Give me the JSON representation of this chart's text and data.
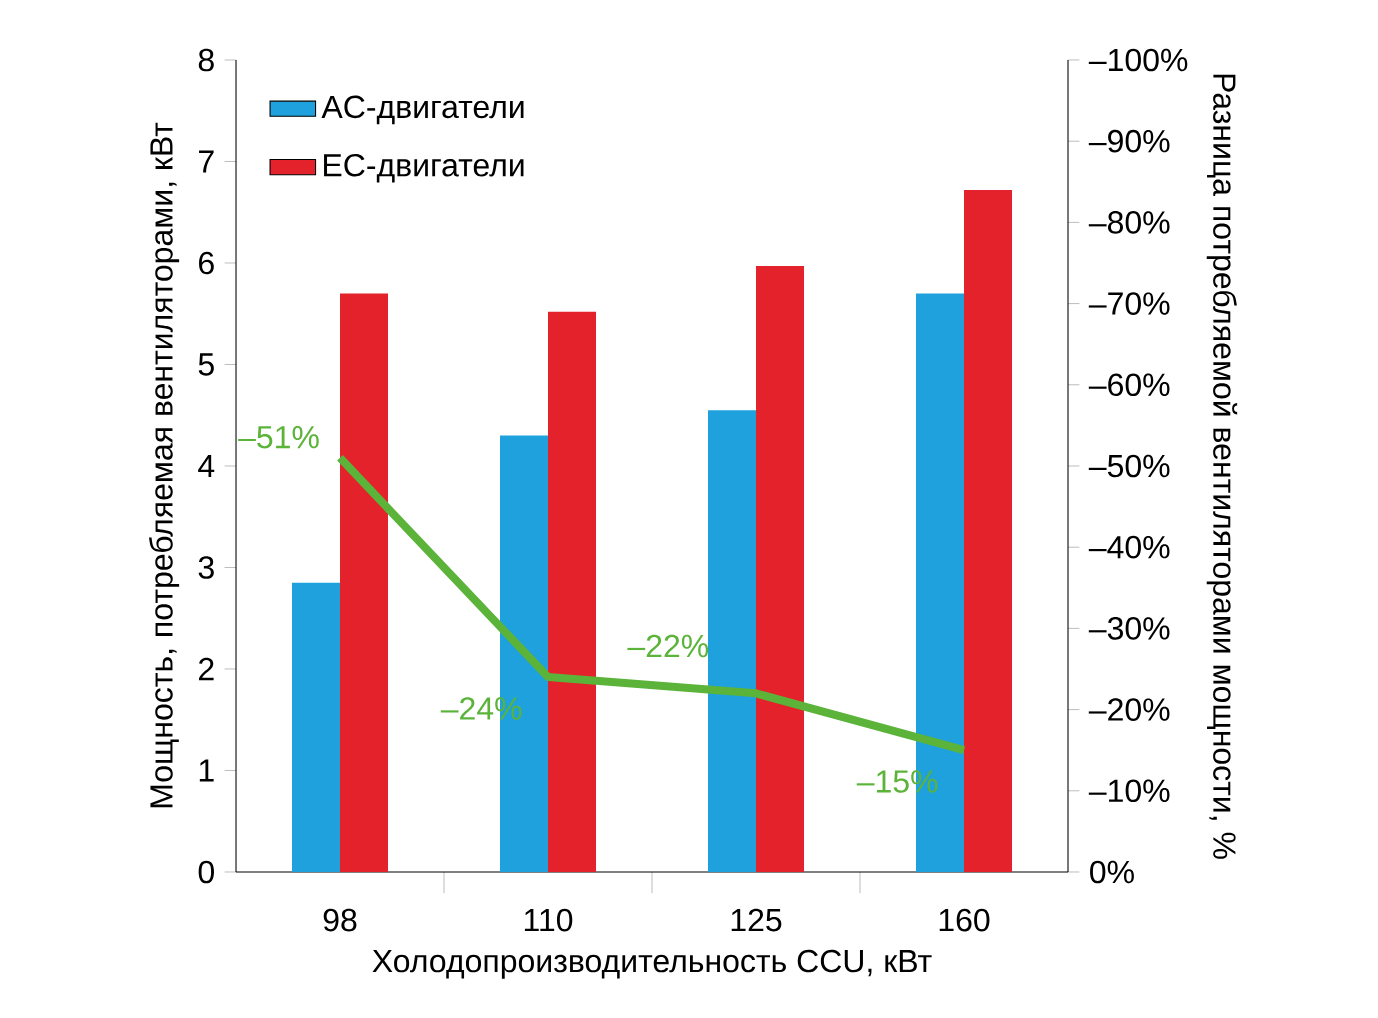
{
  "chart_data": {
    "type": "bar",
    "categories": [
      "98",
      "110",
      "125",
      "160"
    ],
    "xlabel": "Холодопроизводительность CCU, кВт",
    "ylabel": "Мощность, потребляемая вентиляторами, кВт",
    "y2label": "Разница потребляемой вентиляторами мощности, %",
    "ylim": [
      0,
      8
    ],
    "yticks": [
      0,
      1,
      2,
      3,
      4,
      5,
      6,
      7,
      8
    ],
    "y2lim": [
      0,
      -100
    ],
    "y2ticks": [
      {
        "value": 0,
        "label": "0%"
      },
      {
        "value": -10,
        "label": "–10%"
      },
      {
        "value": -20,
        "label": "–20%"
      },
      {
        "value": -30,
        "label": "–30%"
      },
      {
        "value": -40,
        "label": "–40%"
      },
      {
        "value": -50,
        "label": "–50%"
      },
      {
        "value": -60,
        "label": "–60%"
      },
      {
        "value": -70,
        "label": "–70%"
      },
      {
        "value": -80,
        "label": "–80%"
      },
      {
        "value": -90,
        "label": "–90%"
      },
      {
        "value": -100,
        "label": "–100%"
      }
    ],
    "legend": "top left",
    "series": [
      {
        "name": "AC-двигатели",
        "color": "#1ea1dc",
        "values": [
          2.85,
          4.3,
          4.55,
          5.7
        ]
      },
      {
        "name": "EC-двигатели",
        "color": "#e3222b",
        "values": [
          5.7,
          5.52,
          5.97,
          6.72
        ]
      },
      {
        "type": "line",
        "axis": "y2",
        "color": "#5bb33a",
        "values": [
          -51,
          -24,
          -22,
          -15
        ],
        "value_labels": [
          "–51%",
          "–24%",
          "–22%",
          "–15%"
        ]
      }
    ]
  }
}
